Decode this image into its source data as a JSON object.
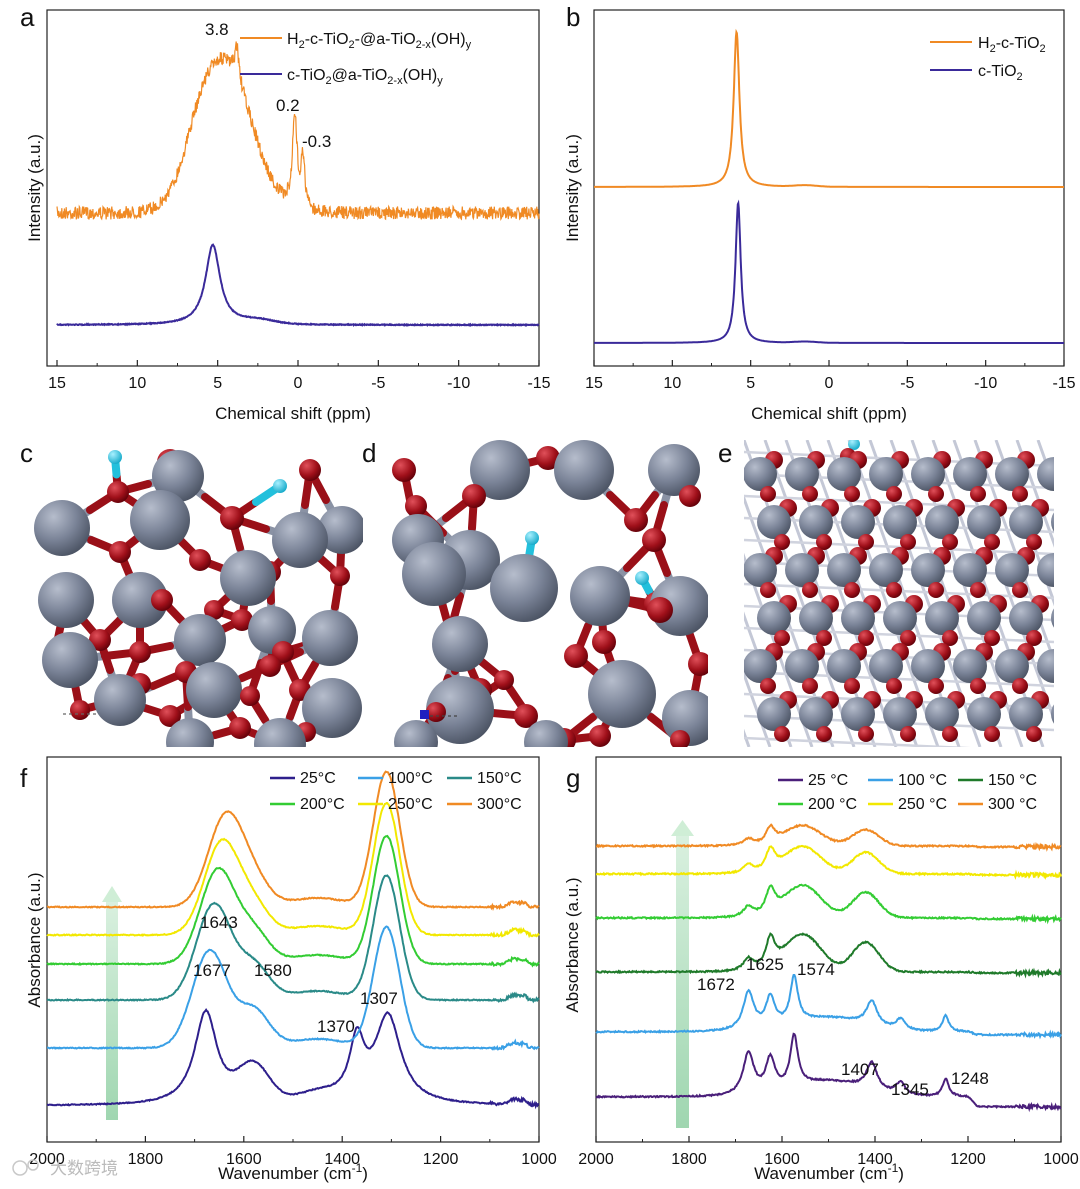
{
  "figure": {
    "panel_labels": [
      "a",
      "b",
      "c",
      "d",
      "e",
      "f",
      "g"
    ],
    "watermark": "大数跨境"
  },
  "colors": {
    "orange": "#f08a24",
    "purple": "#3a2a9a",
    "ti_atom": "#707a8e",
    "o_atom": "#a0101a",
    "h_atom": "#22c0dc"
  },
  "chart_data": [
    {
      "id": "a",
      "type": "line",
      "title": "",
      "xlabel": "Chemical shift (ppm)",
      "ylabel": "Intensity (a.u.)",
      "xlim": [
        15,
        -15
      ],
      "xticks": [
        "15",
        "10",
        "5",
        "0",
        "-5",
        "-10",
        "-15"
      ],
      "series": [
        {
          "name": "H2-c-TiO2-@a-TiO2-x(OH)y",
          "legend_main": "H",
          "legend_sub": "2",
          "legend_tail": "-c-TiO",
          "legend_sub2": "2",
          "legend_tail2": "-@a-TiO",
          "legend_sub3": "2-x",
          "legend_tail3": "(OH)",
          "legend_sub4": "y",
          "color": "orange",
          "peaks_ppm": [
            3.8,
            0.2,
            -0.3
          ]
        },
        {
          "name": "c-TiO2@a-TiO2-x(OH)y",
          "color": "purple",
          "peaks_ppm": [
            5.3
          ]
        }
      ],
      "legend_a1": {
        "p1": "H",
        "s1": "2",
        "p2": "-c-TiO",
        "s2": "2",
        "p3": "-@a-TiO",
        "s3": "2-x",
        "p4": "(OH)",
        "s4": "y"
      },
      "legend_a2": {
        "p1": "c-TiO",
        "s1": "2",
        "p2": "@a-TiO",
        "s2": "2-x",
        "p3": "(OH)",
        "s3": "y"
      },
      "annotations": [
        "3.8",
        "0.2",
        "-0.3"
      ]
    },
    {
      "id": "b",
      "type": "line",
      "title": "",
      "xlabel": "Chemical shift (ppm)",
      "ylabel": "Intensity (a.u.)",
      "xlim": [
        15,
        -15
      ],
      "xticks": [
        "15",
        "10",
        "5",
        "0",
        "-5",
        "-10",
        "-15"
      ],
      "series": [
        {
          "name": "H2-c-TiO2",
          "color": "orange",
          "peaks_ppm": [
            5.9
          ]
        },
        {
          "name": "c-TiO2",
          "color": "purple",
          "peaks_ppm": [
            5.8
          ]
        }
      ],
      "legend_b1": {
        "p1": "H",
        "s1": "2",
        "p2": "-c-TiO",
        "s2": "2"
      },
      "legend_b2": {
        "p1": "c-TiO",
        "s1": "2"
      }
    },
    {
      "id": "f",
      "type": "line",
      "title": "",
      "xlabel": "Wavenumber (cm",
      "xlabel_sup": "-1",
      "xlabel_end": ")",
      "ylabel": "Absorbance (a.u.)",
      "xlim": [
        2000,
        1000
      ],
      "xticks": [
        "2000",
        "1800",
        "1600",
        "1400",
        "1200",
        "1000"
      ],
      "series": [
        {
          "name": "25 °C",
          "label": "25",
          "unit": "°C",
          "color": "#2e1f8c"
        },
        {
          "name": "100 °C",
          "label": "100",
          "unit": "°C",
          "color": "#3aa0e6"
        },
        {
          "name": "150 °C",
          "label": "150",
          "unit": "°C",
          "color": "#2a8a88"
        },
        {
          "name": "200 °C",
          "label": "200",
          "unit": "°C",
          "color": "#33cc33"
        },
        {
          "name": "250 °C",
          "label": "250",
          "unit": "°C",
          "color": "#f2e800"
        },
        {
          "name": "300 °C",
          "label": "300",
          "unit": "°C",
          "color": "#f08a24"
        }
      ],
      "annotations": [
        "1643",
        "1677",
        "1580",
        "1370",
        "1307"
      ]
    },
    {
      "id": "g",
      "type": "line",
      "title": "",
      "xlabel": "Wavenumber (cm",
      "xlabel_sup": "-1",
      "xlabel_end": ")",
      "ylabel": "Absorbance (a.u.)",
      "xlim": [
        2000,
        1000
      ],
      "xticks": [
        "2000",
        "1800",
        "1600",
        "1400",
        "1200",
        "1000"
      ],
      "series": [
        {
          "name": "25 °C",
          "label": "25 °C",
          "color": "#4a1f7a"
        },
        {
          "name": "100 °C",
          "label": "100 °C",
          "color": "#3aa0e6"
        },
        {
          "name": "150 °C",
          "label": "150 °C",
          "color": "#1f7a2a"
        },
        {
          "name": "200 °C",
          "label": "200 °C",
          "color": "#33cc33"
        },
        {
          "name": "250 °C",
          "label": "250 °C",
          "color": "#f2e800"
        },
        {
          "name": "300 °C",
          "label": "300 °C",
          "color": "#f08a24"
        }
      ],
      "annotations": [
        "1672",
        "1625",
        "1574",
        "1407",
        "1345",
        "1248"
      ]
    }
  ]
}
